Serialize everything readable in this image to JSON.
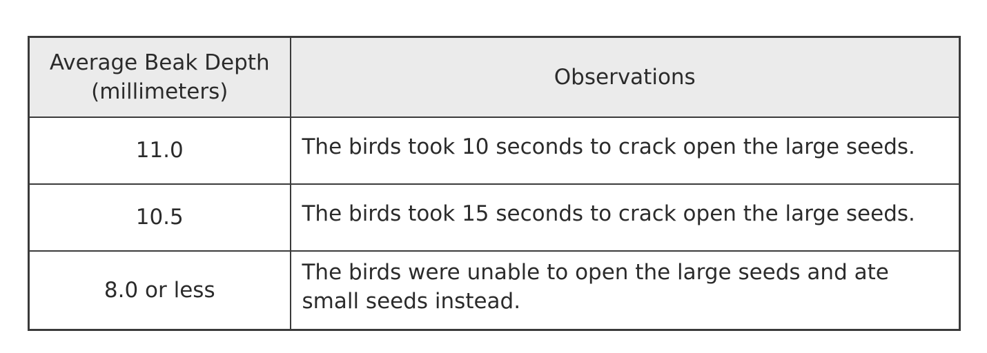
{
  "table": {
    "headers": {
      "depth": "Average Beak Depth (millimeters)",
      "observations": "Observations"
    },
    "rows": [
      {
        "depth": "11.0",
        "observation": "The birds took 10 seconds to crack open the large seeds."
      },
      {
        "depth": "10.5",
        "observation": "The birds took 15 seconds to crack open the large seeds."
      },
      {
        "depth": "8.0 or less",
        "observation": "The birds were unable to open the large seeds and ate small seeds instead."
      }
    ],
    "colors": {
      "header_background": "#ebebeb",
      "border": "#3a3a3a",
      "text": "#2b2b2b"
    }
  }
}
